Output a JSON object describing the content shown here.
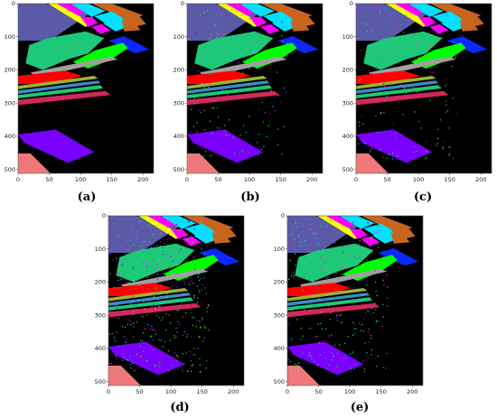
{
  "figure": {
    "panels": [
      {
        "label": "(a)",
        "noise": "none"
      },
      {
        "label": "(b)",
        "noise": "light"
      },
      {
        "label": "(c)",
        "noise": "light"
      },
      {
        "label": "(d)",
        "noise": "heavy"
      },
      {
        "label": "(e)",
        "noise": "medium"
      }
    ],
    "y_ticks": [
      "0",
      "100",
      "200",
      "300",
      "400",
      "500"
    ],
    "x_ticks": [
      "0",
      "50",
      "100",
      "150",
      "200"
    ],
    "class_colors": {
      "background": "#000000",
      "c1": "#5a5aa8",
      "c2": "#00e0ff",
      "c3": "#ff00ff",
      "c4": "#ffff00",
      "c5": "#c8641e",
      "c6": "#1ec878",
      "c7": "#0a28ff",
      "c8": "#00ff00",
      "c9": "#ff0000",
      "c10": "#9ab432",
      "c11": "#d2285a",
      "c12": "#7a00ff",
      "c13": "#f07878",
      "c14": "#3c8cc8",
      "c15": "#a0a0a0"
    }
  }
}
